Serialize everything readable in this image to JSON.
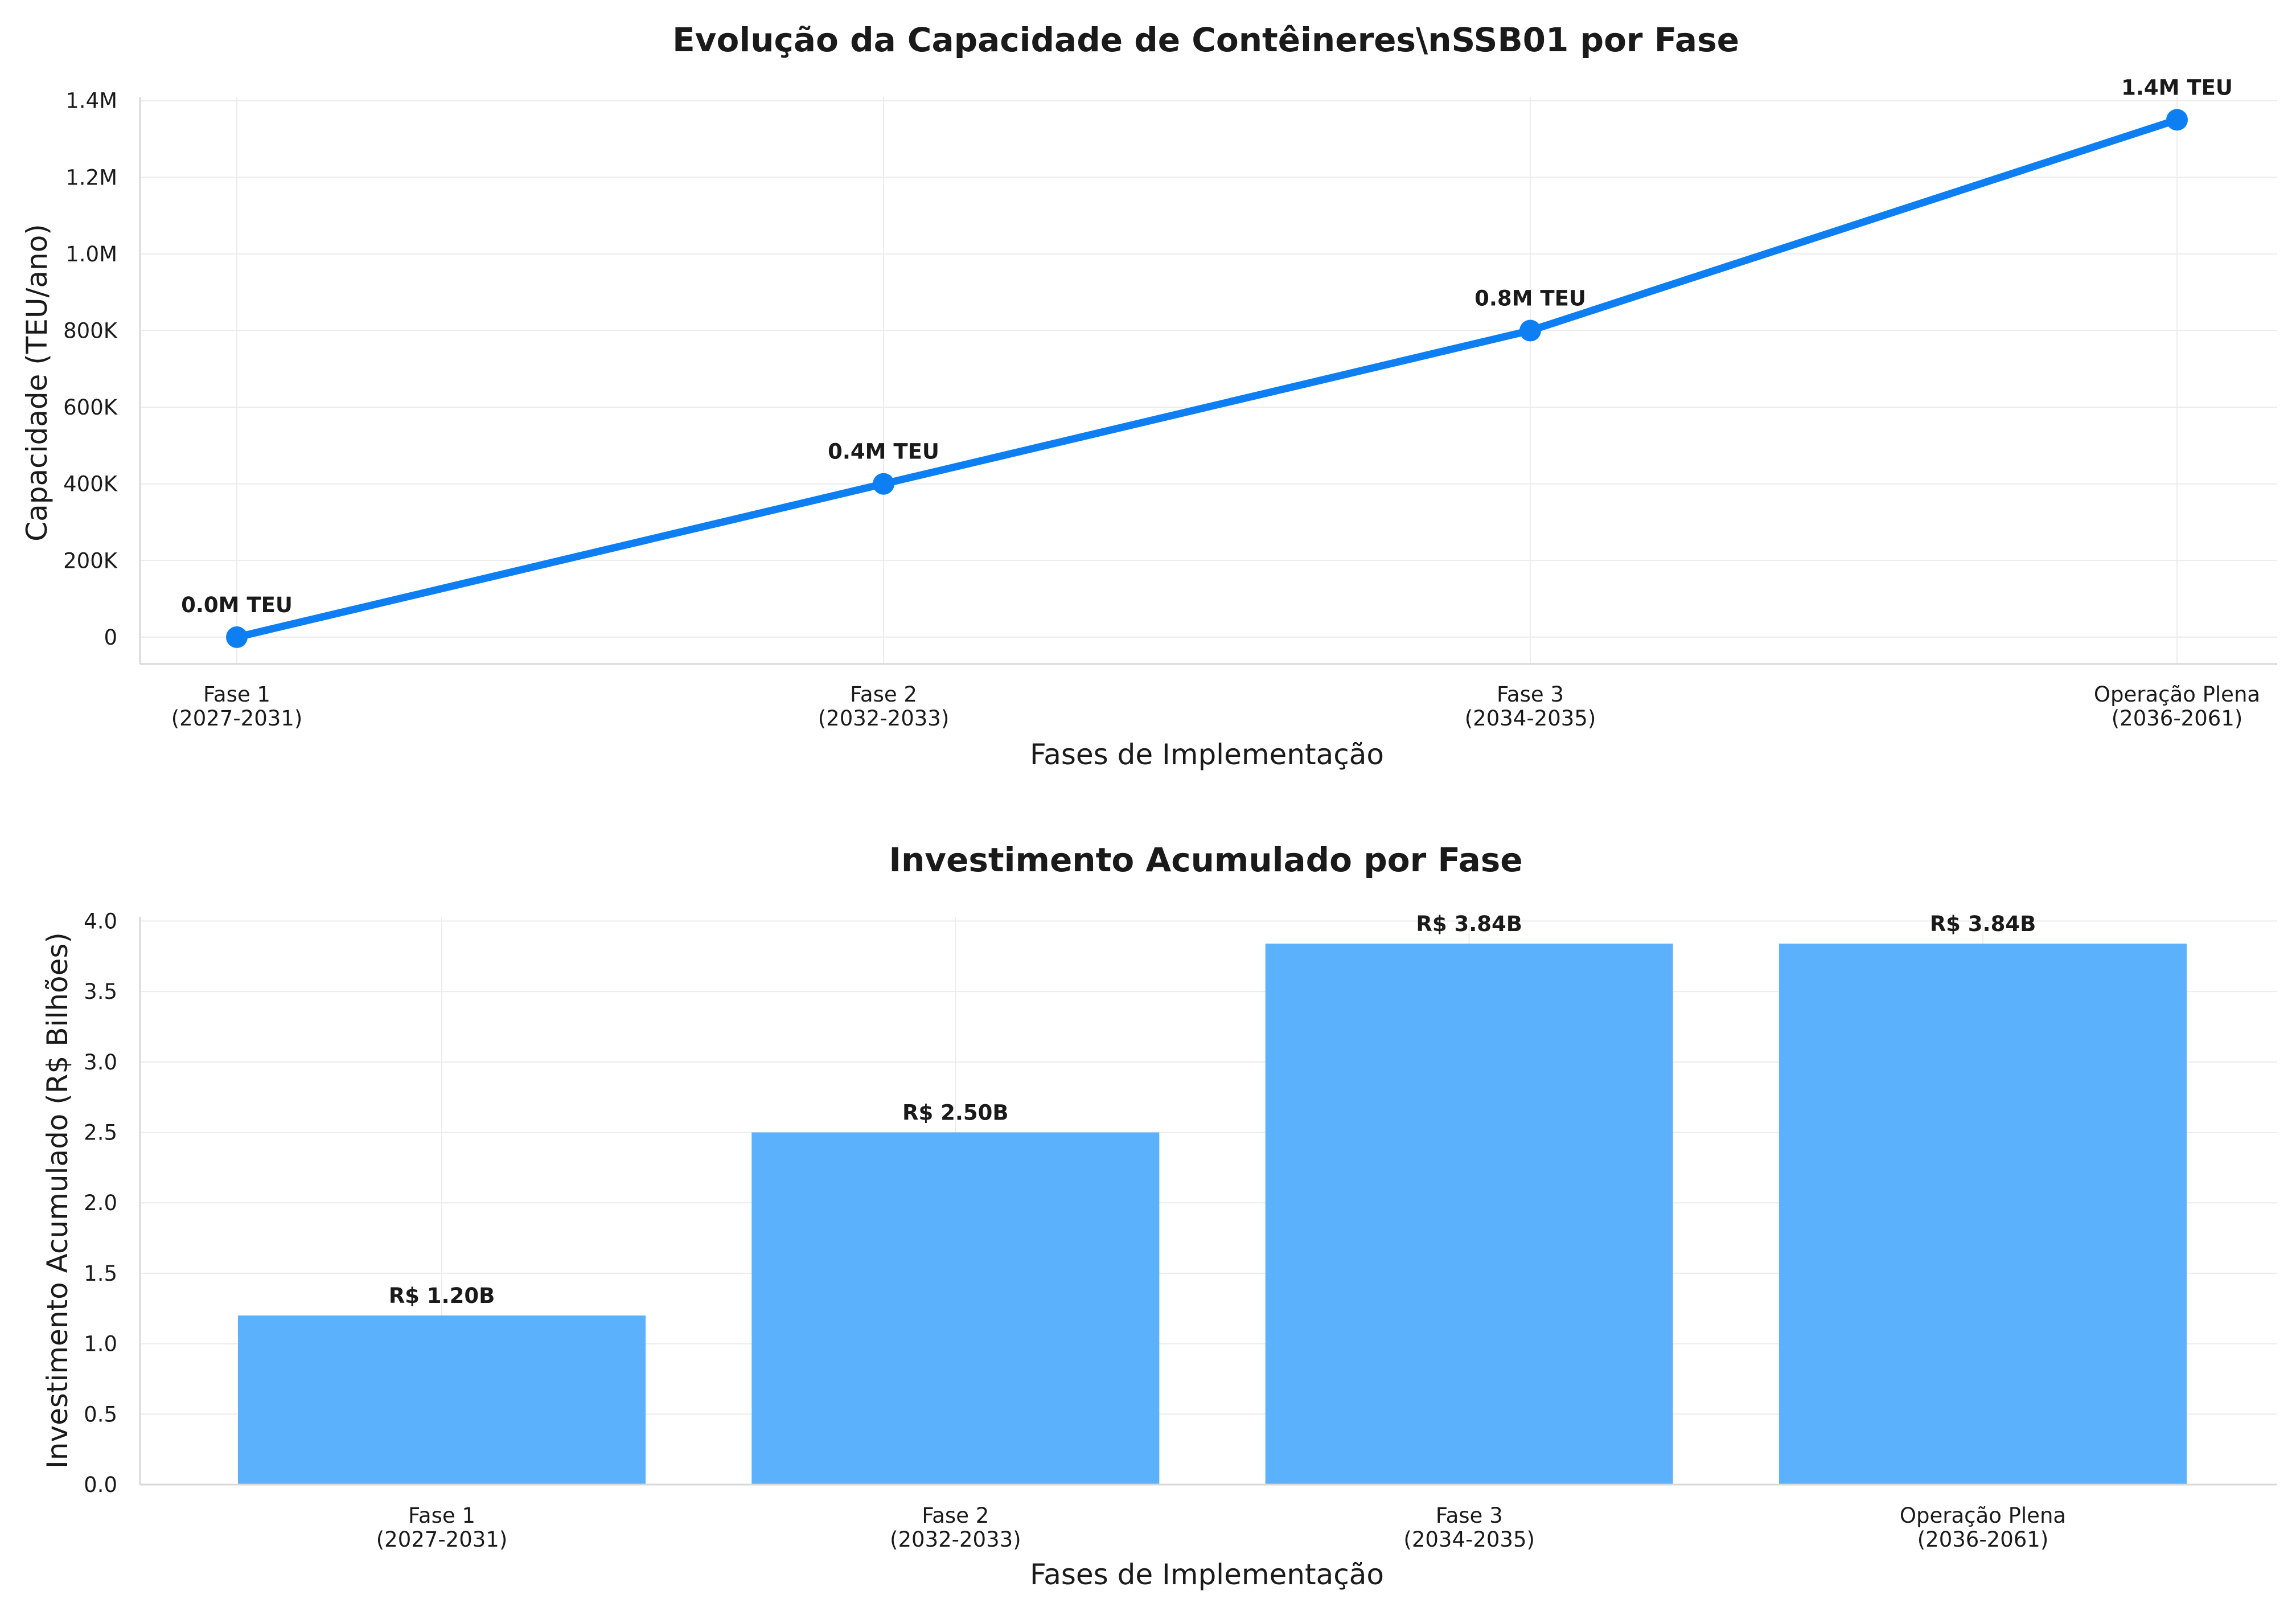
{
  "chart_data": [
    {
      "type": "line",
      "title": "Evolução da Capacidade de Contêineres\\nSSB01 por Fase",
      "xlabel": "Fases de Implementação",
      "ylabel": "Capacidade (TEU/ano)",
      "categories": [
        [
          "Fase 1",
          "(2027-2031)"
        ],
        [
          "Fase 2",
          "(2032-2033)"
        ],
        [
          "Fase 3",
          "(2034-2035)"
        ],
        [
          "Operação Plena",
          "(2036-2061)"
        ]
      ],
      "values": [
        0,
        400000,
        800000,
        1350000
      ],
      "data_labels": [
        "0.0M TEU",
        "0.4M TEU",
        "0.8M TEU",
        "1.4M TEU"
      ],
      "ylim": [
        -70000,
        1410000
      ],
      "yticks": [
        0,
        200000,
        400000,
        600000,
        800000,
        1000000,
        1200000,
        1400000
      ],
      "ytick_labels": [
        "0",
        "200K",
        "400K",
        "600K",
        "800K",
        "1.0M",
        "1.2M",
        "1.4M"
      ],
      "grid": true,
      "color": "#0d7ff2"
    },
    {
      "type": "bar",
      "title": "Investimento Acumulado por Fase",
      "xlabel": "Fases de Implementação",
      "ylabel": "Investimento Acumulado (R$ Bilhões)",
      "categories": [
        [
          "Fase 1",
          "(2027-2031)"
        ],
        [
          "Fase 2",
          "(2032-2033)"
        ],
        [
          "Fase 3",
          "(2034-2035)"
        ],
        [
          "Operação Plena",
          "(2036-2061)"
        ]
      ],
      "values": [
        1.2,
        2.5,
        3.84,
        3.84
      ],
      "data_labels": [
        "R$ 1.20B",
        "R$ 2.50B",
        "R$ 3.84B",
        "R$ 3.84B"
      ],
      "ylim": [
        0,
        4.03
      ],
      "yticks": [
        0,
        0.5,
        1,
        1.5,
        2,
        2.5,
        3,
        3.5,
        4
      ],
      "ytick_labels": [
        "0.0",
        "0.5",
        "1.0",
        "1.5",
        "2.0",
        "2.5",
        "3.0",
        "3.5",
        "4.0"
      ],
      "grid": true,
      "color": "#5cb1fd"
    }
  ]
}
